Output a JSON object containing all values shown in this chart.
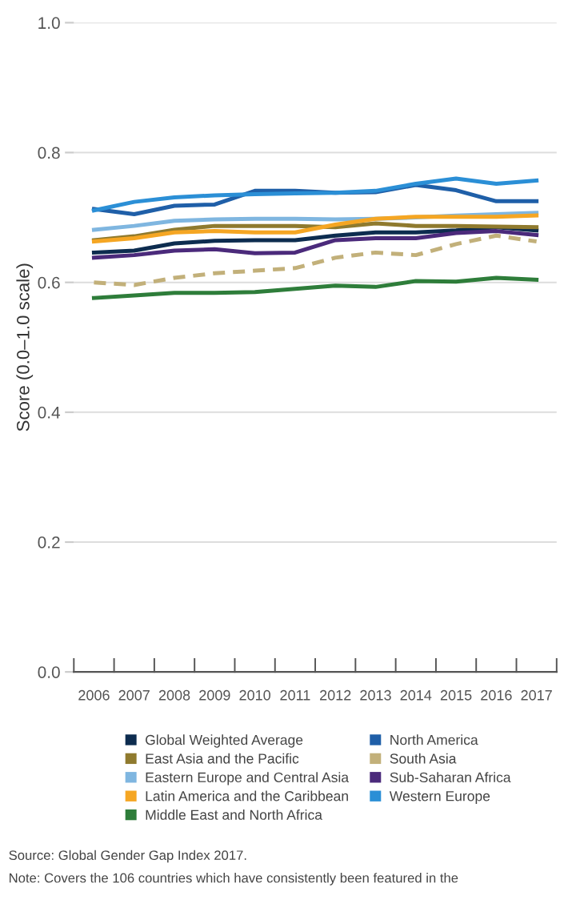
{
  "chart_data": {
    "type": "line",
    "ylabel": "Score (0.0–1.0 scale)",
    "categories": [
      "2006",
      "2007",
      "2008",
      "2009",
      "2010",
      "2011",
      "2012",
      "2013",
      "2014",
      "2015",
      "2016",
      "2017"
    ],
    "ylim": [
      0.0,
      1.0
    ],
    "yticks": [
      {
        "value": 0,
        "label": "0.0"
      },
      {
        "value": 0.2,
        "label": "0.2"
      },
      {
        "value": 0.4,
        "label": "0.4"
      },
      {
        "value": 0.6,
        "label": "0.6"
      },
      {
        "value": 0.8,
        "label": "0.8"
      },
      {
        "value": 1.0,
        "label": "1.0"
      }
    ],
    "grid": "y",
    "legend": "bottom",
    "marker": "none",
    "series": [
      {
        "name": "Global Weighted Average",
        "color": "#0d2c4f",
        "values": [
          0.646,
          0.649,
          0.66,
          0.664,
          0.665,
          0.665,
          0.672,
          0.677,
          0.677,
          0.68,
          0.685,
          0.68
        ]
      },
      {
        "name": "East Asia and the Pacific",
        "color": "#8f7a2e",
        "values": [
          0.665,
          0.671,
          0.681,
          0.687,
          0.687,
          0.687,
          0.685,
          0.691,
          0.687,
          0.687,
          0.686,
          0.685
        ]
      },
      {
        "name": "Eastern Europe and Central Asia",
        "color": "#7fb6e0",
        "values": [
          0.681,
          0.687,
          0.695,
          0.697,
          0.698,
          0.698,
          0.697,
          0.698,
          0.7,
          0.703,
          0.705,
          0.707
        ]
      },
      {
        "name": "Latin America and the Caribbean",
        "color": "#f5a623",
        "values": [
          0.663,
          0.668,
          0.677,
          0.679,
          0.677,
          0.677,
          0.689,
          0.698,
          0.701,
          0.701,
          0.701,
          0.703
        ]
      },
      {
        "name": "Middle East and North Africa",
        "color": "#2e7d3a",
        "values": [
          0.576,
          0.58,
          0.584,
          0.584,
          0.585,
          0.59,
          0.595,
          0.593,
          0.602,
          0.601,
          0.607,
          0.604
        ]
      },
      {
        "name": "North America",
        "color": "#1f5fa8",
        "values": [
          0.713,
          0.705,
          0.718,
          0.72,
          0.741,
          0.741,
          0.738,
          0.739,
          0.75,
          0.742,
          0.725,
          0.725
        ]
      },
      {
        "name": "South Asia",
        "color": "#c2b07a",
        "line_style": "dashed",
        "values": [
          0.6,
          0.596,
          0.607,
          0.614,
          0.618,
          0.622,
          0.638,
          0.646,
          0.642,
          0.659,
          0.672,
          0.663
        ]
      },
      {
        "name": "Sub-Saharan Africa",
        "color": "#4b2a7b",
        "values": [
          0.638,
          0.642,
          0.649,
          0.651,
          0.645,
          0.646,
          0.665,
          0.668,
          0.668,
          0.676,
          0.679,
          0.673
        ]
      },
      {
        "name": "Western Europe",
        "color": "#2b8fd6",
        "values": [
          0.711,
          0.724,
          0.731,
          0.734,
          0.736,
          0.737,
          0.738,
          0.741,
          0.752,
          0.76,
          0.752,
          0.757
        ]
      }
    ],
    "annotations": [
      "Source: Global Gender Gap Index 2017.",
      "Note: Covers the 106 countries which have consistently been featured in the"
    ]
  }
}
